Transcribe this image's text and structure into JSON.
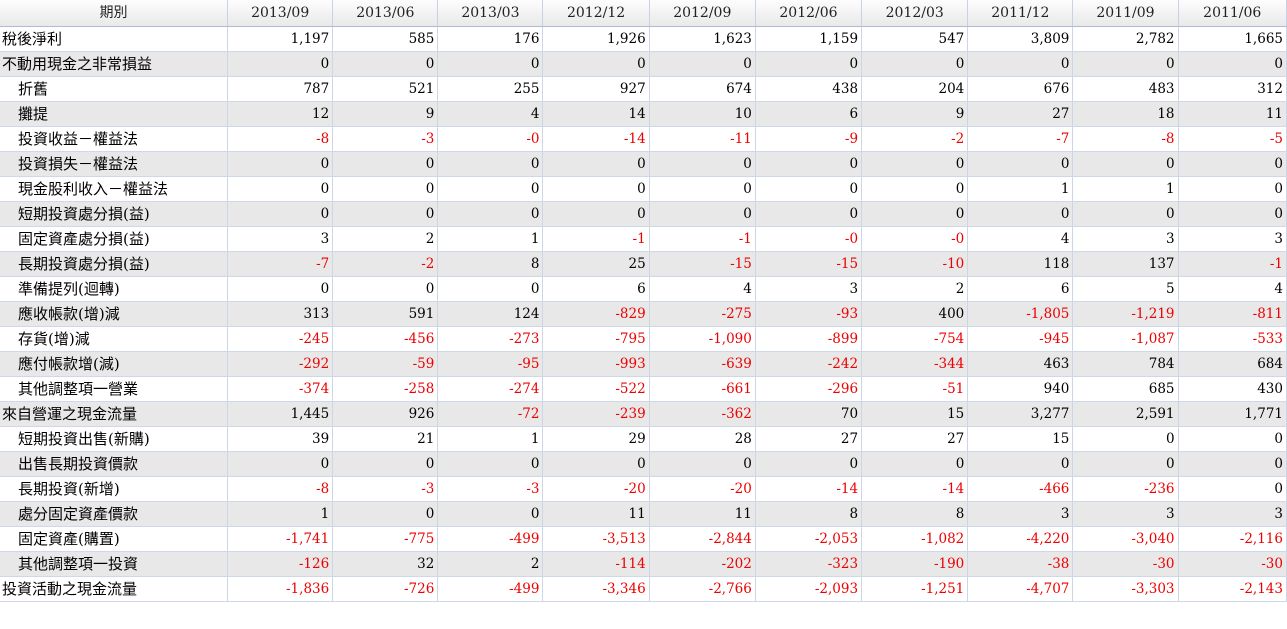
{
  "table": {
    "headers": [
      "期別",
      "2013/09",
      "2013/06",
      "2013/03",
      "2012/12",
      "2012/09",
      "2012/06",
      "2012/03",
      "2011/12",
      "2011/09",
      "2011/06"
    ],
    "rows": [
      {
        "label": "稅後淨利",
        "indent": false,
        "values": [
          "1,197",
          "585",
          "176",
          "1,926",
          "1,623",
          "1,159",
          "547",
          "3,809",
          "2,782",
          "1,665"
        ]
      },
      {
        "label": "不動用現金之非常損益",
        "indent": false,
        "values": [
          "0",
          "0",
          "0",
          "0",
          "0",
          "0",
          "0",
          "0",
          "0",
          "0"
        ]
      },
      {
        "label": "折舊",
        "indent": true,
        "values": [
          "787",
          "521",
          "255",
          "927",
          "674",
          "438",
          "204",
          "676",
          "483",
          "312"
        ]
      },
      {
        "label": "攤提",
        "indent": true,
        "values": [
          "12",
          "9",
          "4",
          "14",
          "10",
          "6",
          "9",
          "27",
          "18",
          "11"
        ]
      },
      {
        "label": "投資收益－權益法",
        "indent": true,
        "values": [
          "-8",
          "-3",
          "-0",
          "-14",
          "-11",
          "-9",
          "-2",
          "-7",
          "-8",
          "-5"
        ]
      },
      {
        "label": "投資損失－權益法",
        "indent": true,
        "values": [
          "0",
          "0",
          "0",
          "0",
          "0",
          "0",
          "0",
          "0",
          "0",
          "0"
        ]
      },
      {
        "label": "現金股利收入－權益法",
        "indent": true,
        "values": [
          "0",
          "0",
          "0",
          "0",
          "0",
          "0",
          "0",
          "1",
          "1",
          "0"
        ]
      },
      {
        "label": "短期投資處分損(益)",
        "indent": true,
        "values": [
          "0",
          "0",
          "0",
          "0",
          "0",
          "0",
          "0",
          "0",
          "0",
          "0"
        ]
      },
      {
        "label": "固定資產處分損(益)",
        "indent": true,
        "values": [
          "3",
          "2",
          "1",
          "-1",
          "-1",
          "-0",
          "-0",
          "4",
          "3",
          "3"
        ]
      },
      {
        "label": "長期投資處分損(益)",
        "indent": true,
        "values": [
          "-7",
          "-2",
          "8",
          "25",
          "-15",
          "-15",
          "-10",
          "118",
          "137",
          "-1"
        ]
      },
      {
        "label": "準備提列(迴轉)",
        "indent": true,
        "values": [
          "0",
          "0",
          "0",
          "6",
          "4",
          "3",
          "2",
          "6",
          "5",
          "4"
        ]
      },
      {
        "label": "應收帳款(增)減",
        "indent": true,
        "values": [
          "313",
          "591",
          "124",
          "-829",
          "-275",
          "-93",
          "400",
          "-1,805",
          "-1,219",
          "-811"
        ]
      },
      {
        "label": "存貨(增)減",
        "indent": true,
        "values": [
          "-245",
          "-456",
          "-273",
          "-795",
          "-1,090",
          "-899",
          "-754",
          "-945",
          "-1,087",
          "-533"
        ]
      },
      {
        "label": "應付帳款增(減)",
        "indent": true,
        "values": [
          "-292",
          "-59",
          "-95",
          "-993",
          "-639",
          "-242",
          "-344",
          "463",
          "784",
          "684"
        ]
      },
      {
        "label": "其他調整項一營業",
        "indent": true,
        "values": [
          "-374",
          "-258",
          "-274",
          "-522",
          "-661",
          "-296",
          "-51",
          "940",
          "685",
          "430"
        ]
      },
      {
        "label": "來自營運之現金流量",
        "indent": false,
        "values": [
          "1,445",
          "926",
          "-72",
          "-239",
          "-362",
          "70",
          "15",
          "3,277",
          "2,591",
          "1,771"
        ]
      },
      {
        "label": "短期投資出售(新購)",
        "indent": true,
        "values": [
          "39",
          "21",
          "1",
          "29",
          "28",
          "27",
          "27",
          "15",
          "0",
          "0"
        ]
      },
      {
        "label": "出售長期投資價款",
        "indent": true,
        "values": [
          "0",
          "0",
          "0",
          "0",
          "0",
          "0",
          "0",
          "0",
          "0",
          "0"
        ]
      },
      {
        "label": "長期投資(新增)",
        "indent": true,
        "values": [
          "-8",
          "-3",
          "-3",
          "-20",
          "-20",
          "-14",
          "-14",
          "-466",
          "-236",
          "0"
        ]
      },
      {
        "label": "處分固定資產價款",
        "indent": true,
        "values": [
          "1",
          "0",
          "0",
          "11",
          "11",
          "8",
          "8",
          "3",
          "3",
          "3"
        ]
      },
      {
        "label": "固定資產(購置)",
        "indent": true,
        "values": [
          "-1,741",
          "-775",
          "-499",
          "-3,513",
          "-2,844",
          "-2,053",
          "-1,082",
          "-4,220",
          "-3,040",
          "-2,116"
        ]
      },
      {
        "label": "其他調整項一投資",
        "indent": true,
        "values": [
          "-126",
          "32",
          "2",
          "-114",
          "-202",
          "-323",
          "-190",
          "-38",
          "-30",
          "-30"
        ]
      },
      {
        "label": "投資活動之現金流量",
        "indent": false,
        "values": [
          "-1,836",
          "-726",
          "-499",
          "-3,346",
          "-2,766",
          "-2,093",
          "-1,251",
          "-4,707",
          "-3,303",
          "-2,143"
        ]
      }
    ]
  },
  "colors": {
    "negative": "#ee0000",
    "stripe": "#e8e8e8",
    "border": "#ccd6e4"
  },
  "icons": {
    "corner": "scroll-top-button-icon"
  }
}
